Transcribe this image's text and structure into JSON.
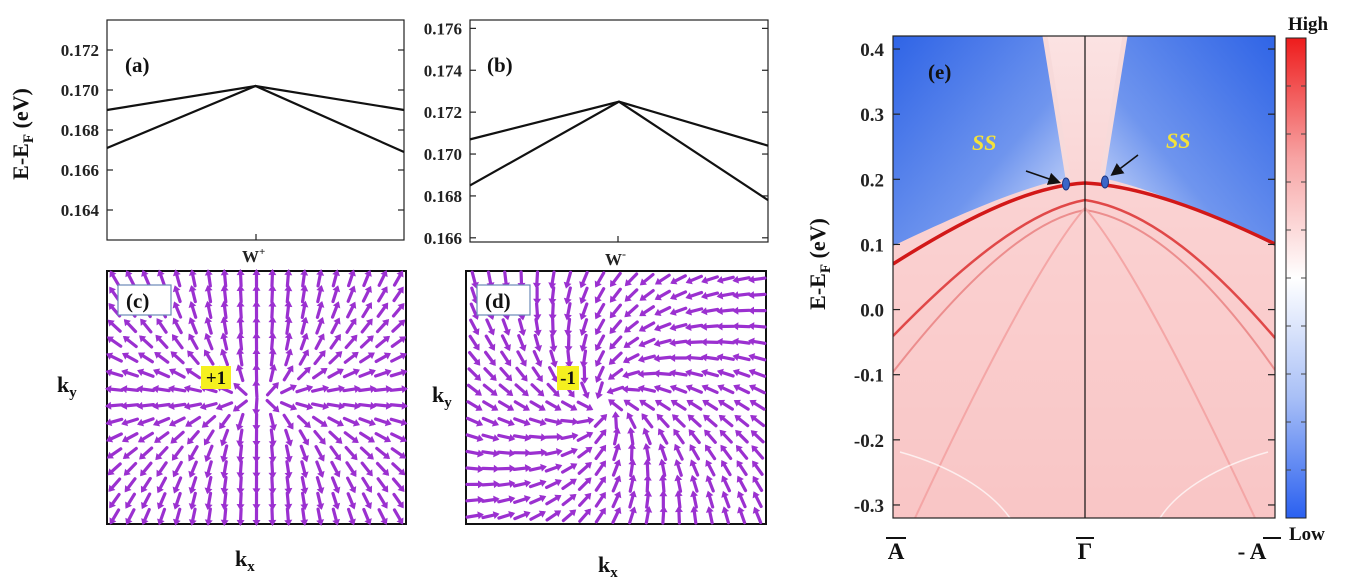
{
  "colors": {
    "line": "#111111",
    "arrow": "#9b30d0",
    "chirality_badge": "#f5f01f",
    "surface_state": "#f3e23a",
    "colorbar_high": "#ee2020",
    "colorbar_low": "#2a62f0",
    "point_marker": "#3a66c8"
  },
  "chart_data": [
    {
      "panel": "(a)",
      "type": "line",
      "ylabel_main": "E-E",
      "ylabel_sub": "F",
      "ylabel_unit": " (eV)",
      "xtick": {
        "main": "W",
        "sup": "+"
      },
      "yticks": [
        "0.164",
        "0.166",
        "0.168",
        "0.170",
        "0.172"
      ],
      "ylim": [
        0.1625,
        0.1735
      ],
      "xlim": [
        -1,
        1
      ],
      "series": [
        {
          "x": [
            -1,
            0,
            1
          ],
          "y": [
            0.169,
            0.1702,
            0.169
          ]
        },
        {
          "x": [
            -1,
            0,
            1
          ],
          "y": [
            0.1671,
            0.1702,
            0.1669
          ]
        }
      ]
    },
    {
      "panel": "(b)",
      "type": "line",
      "xtick": {
        "main": "W",
        "sup": "-"
      },
      "yticks": [
        "0.166",
        "0.168",
        "0.170",
        "0.172",
        "0.174",
        "0.176"
      ],
      "ylim": [
        0.1658,
        0.1764
      ],
      "xlim": [
        -1,
        1
      ],
      "series": [
        {
          "x": [
            -1,
            0,
            1
          ],
          "y": [
            0.1707,
            0.1725,
            0.1704
          ]
        },
        {
          "x": [
            -1,
            0,
            1
          ],
          "y": [
            0.1685,
            0.1725,
            0.1678
          ]
        }
      ]
    },
    {
      "panel": "(c)",
      "type": "vector_field",
      "xlabel_main": "k",
      "xlabel_sub": "x",
      "ylabel_main": "k",
      "ylabel_sub": "y",
      "chirality": "+1",
      "field": "source"
    },
    {
      "panel": "(d)",
      "type": "vector_field",
      "xlabel_main": "k",
      "xlabel_sub": "x",
      "ylabel_main": "k",
      "ylabel_sub": "y",
      "chirality": "-1",
      "field": "sink"
    },
    {
      "panel": "(e)",
      "type": "heatmap",
      "ylabel_main": "E-E",
      "ylabel_sub": "F",
      "ylabel_unit": " (eV)",
      "yticks": [
        "0.4",
        "0.3",
        "0.2",
        "0.1",
        "0.0",
        "-0.1",
        "-0.2",
        "-0.3"
      ],
      "ylim": [
        -0.32,
        0.42
      ],
      "xticks": [
        "A",
        "Γ",
        "- A"
      ],
      "colorbar": {
        "high": "High",
        "low": "Low"
      },
      "annotations": [
        "SS",
        "SS"
      ],
      "weyl_point_energy": 0.19
    }
  ]
}
